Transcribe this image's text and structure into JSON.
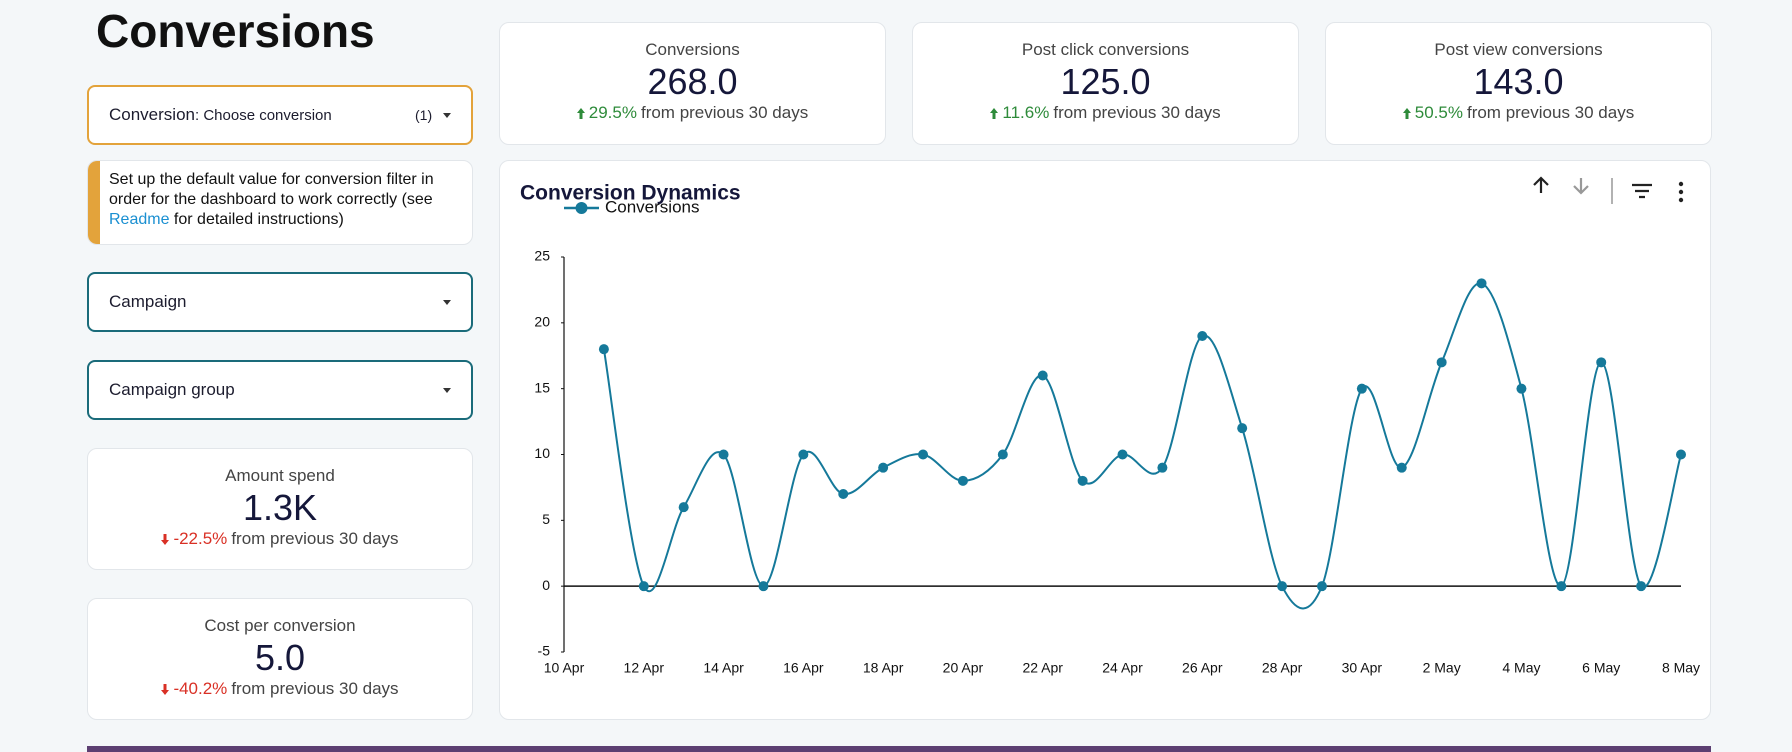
{
  "header": {
    "title": "Conversions"
  },
  "filters": [
    {
      "label": "Conversion",
      "value": ": Choose conversion",
      "count": "(1)"
    },
    {
      "label": "Campaign"
    },
    {
      "label": "Campaign group"
    }
  ],
  "note": {
    "text_before": "Set up the default value for conversion filter in order for the dashboard to work correctly (see ",
    "link": "Readme",
    "text_after": " for detailed instructions)"
  },
  "summary_cards": [
    {
      "label": "Conversions",
      "value": "268.0",
      "change": "29.5%",
      "direction": "up",
      "comparison": "from previous 30 days"
    },
    {
      "label": "Post click conversions",
      "value": "125.0",
      "change": "11.6%",
      "direction": "up",
      "comparison": "from previous 30 days"
    },
    {
      "label": "Post view conversions",
      "value": "143.0",
      "change": "50.5%",
      "direction": "up",
      "comparison": "from previous 30 days"
    }
  ],
  "side_cards": [
    {
      "label": "Amount spend",
      "value": "1.3K",
      "change": "-22.5%",
      "direction": "down",
      "comparison": "from previous 30 days"
    },
    {
      "label": "Cost per conversion",
      "value": "5.0",
      "change": "-40.2%",
      "direction": "down",
      "comparison": "from previous 30 days"
    }
  ],
  "chart_data": {
    "type": "line",
    "title": "Conversion Dynamics",
    "categories": [
      "10 Apr",
      null,
      "12 Apr",
      null,
      "14 Apr",
      null,
      "16 Apr",
      null,
      "18 Apr",
      null,
      "20 Apr",
      null,
      "22 Apr",
      null,
      "24 Apr",
      null,
      "26 Apr",
      null,
      "28 Apr",
      null,
      "30 Apr",
      null,
      "2 May",
      null,
      "4 May",
      null,
      "6 May",
      null,
      "8 May"
    ],
    "series": [
      {
        "name": "Conversions",
        "color": "#15799a",
        "values": [
          null,
          18,
          0,
          6,
          10,
          0,
          10,
          7,
          9,
          10,
          8,
          10,
          16,
          8,
          10,
          9,
          19,
          12,
          0,
          0,
          15,
          9,
          17,
          23,
          15,
          0,
          17,
          0,
          10
        ]
      }
    ],
    "ylim": [
      -5,
      25
    ],
    "yticks": [
      -5,
      0,
      5,
      10,
      15,
      20,
      25
    ],
    "grid": false,
    "smooth": true,
    "legend": "top-left"
  }
}
